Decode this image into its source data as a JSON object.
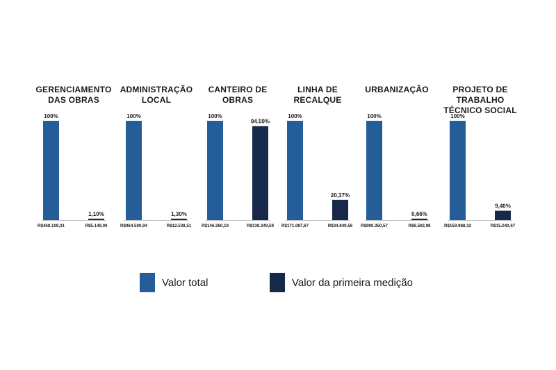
{
  "colors": {
    "total": "#255d99",
    "first": "#17294a",
    "baseline": "#bdbdbd",
    "text": "#1a1a1a"
  },
  "legend": {
    "total_label": "Valor total",
    "first_label": "Valor da primeira medição"
  },
  "chart_data": [
    {
      "type": "bar",
      "title": "GERENCIAMENTO DAS OBRAS",
      "title_lines": [
        "GERENCIAMENTO",
        "DAS OBRAS"
      ],
      "categories": [
        "Valor total",
        "Valor da primeira medição"
      ],
      "values": [
        100,
        1.1
      ],
      "data_labels": [
        "100%",
        "1,10%"
      ],
      "amount_labels": [
        "R$468.109,31",
        "R$5.149,00"
      ],
      "ylim": [
        0,
        100
      ]
    },
    {
      "type": "bar",
      "title": "ADMINISTRAÇÃO LOCAL",
      "title_lines": [
        "ADMINISTRAÇÃO",
        "LOCAL"
      ],
      "categories": [
        "Valor total",
        "Valor da primeira medição"
      ],
      "values": [
        100,
        1.3
      ],
      "data_labels": [
        "100%",
        "1,30%"
      ],
      "amount_labels": [
        "R$964.500,94",
        "R$12.538,51"
      ],
      "ylim": [
        0,
        100
      ]
    },
    {
      "type": "bar",
      "title": "CANTEIRO DE OBRAS",
      "title_lines": [
        "CANTEIRO DE",
        "OBRAS"
      ],
      "categories": [
        "Valor total",
        "Valor da primeira medição"
      ],
      "values": [
        100,
        94.59
      ],
      "data_labels": [
        "100%",
        "94.59%"
      ],
      "amount_labels": [
        "R$146.260,19",
        "R$138.349,59"
      ],
      "ylim": [
        0,
        100
      ]
    },
    {
      "type": "bar",
      "title": "LINHA DE RECALQUE",
      "title_lines": [
        "LINHA DE",
        "RECALQUE"
      ],
      "categories": [
        "Valor total",
        "Valor da primeira medição"
      ],
      "values": [
        100,
        20.37
      ],
      "data_labels": [
        "100%",
        "20,37%"
      ],
      "amount_labels": [
        "R$171.087,67",
        "R$34.849,56"
      ],
      "ylim": [
        0,
        100
      ]
    },
    {
      "type": "bar",
      "title": "URBANIZAÇÃO",
      "title_lines": [
        "URBANIZAÇÃO"
      ],
      "categories": [
        "Valor total",
        "Valor da primeira medição"
      ],
      "values": [
        100,
        0.66
      ],
      "data_labels": [
        "100%",
        "0,66%"
      ],
      "amount_labels": [
        "R$990.350,57",
        "R$6.502,98"
      ],
      "ylim": [
        0,
        100
      ]
    },
    {
      "type": "bar",
      "title": "PROJETO DE TRABALHO TÉCNICO SOCIAL",
      "title_lines": [
        "PROJETO DE TRABALHO",
        "TÉCNICO SOCIAL"
      ],
      "categories": [
        "Valor total",
        "Valor da primeira medição"
      ],
      "values": [
        100,
        9.4
      ],
      "data_labels": [
        "100%",
        "9,40%"
      ],
      "amount_labels": [
        "R$159.988,32",
        "R$15.040,67"
      ],
      "ylim": [
        0,
        100
      ]
    }
  ]
}
